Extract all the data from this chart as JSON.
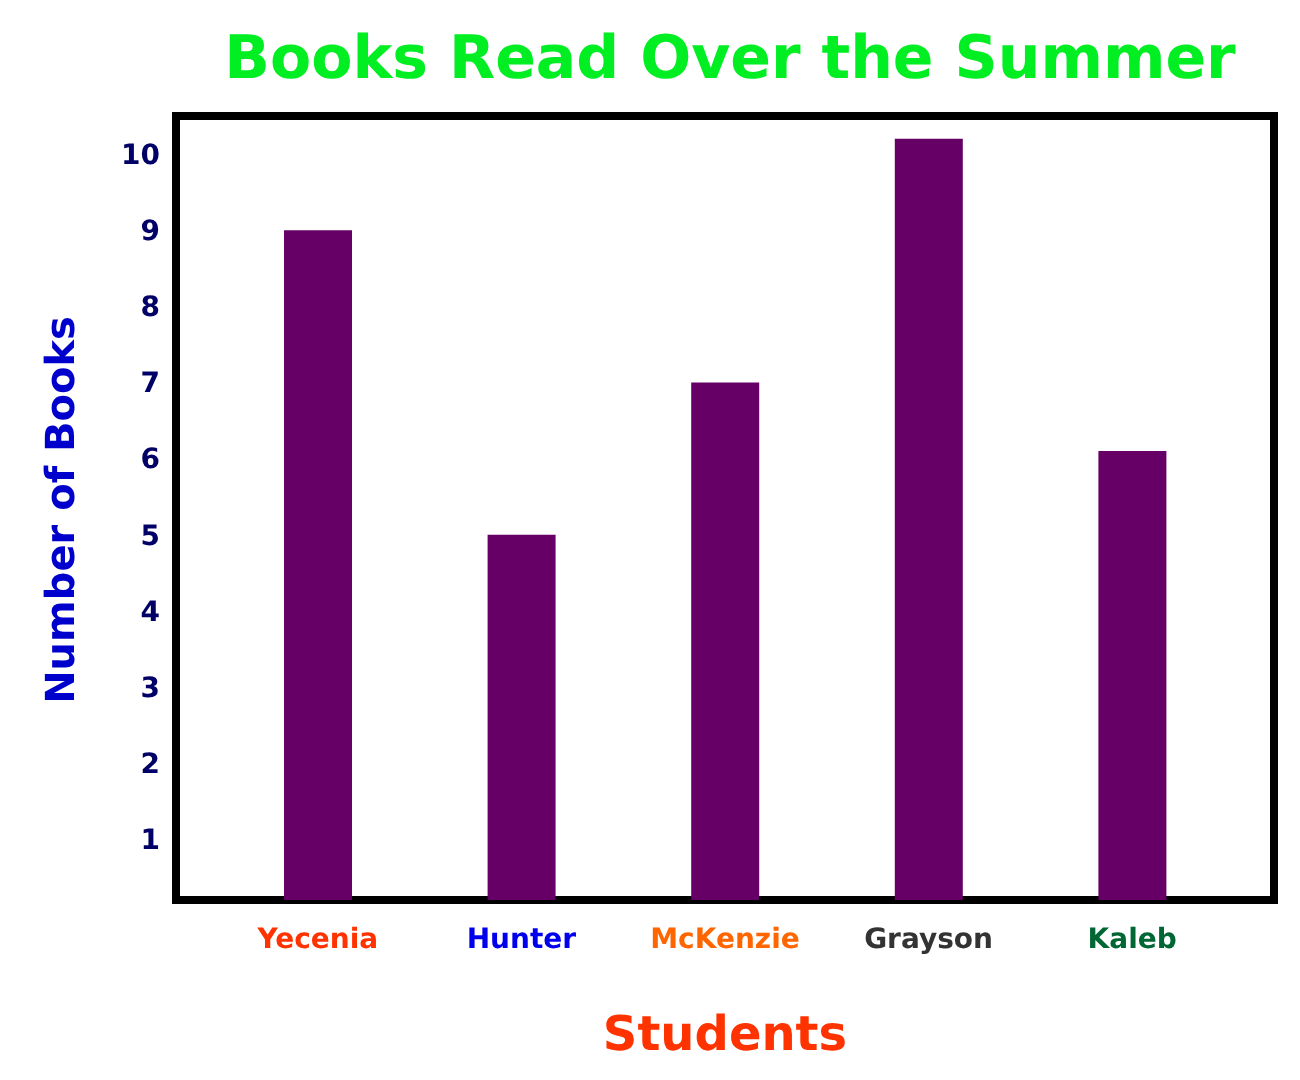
{
  "chart_data": {
    "type": "bar",
    "title": "Books Read Over the Summer",
    "xlabel": "Students",
    "ylabel": "Number of Books",
    "categories": [
      "Yecenia",
      "Hunter",
      "McKenzie",
      "Grayson",
      "Kaleb"
    ],
    "values": [
      9,
      5,
      7,
      10.2,
      6.1
    ],
    "color": "#660066",
    "ylim": [
      0.2,
      10.5
    ],
    "yticks": [
      1,
      2,
      3,
      4,
      5,
      6,
      7,
      8,
      9,
      10
    ],
    "grid": false
  }
}
